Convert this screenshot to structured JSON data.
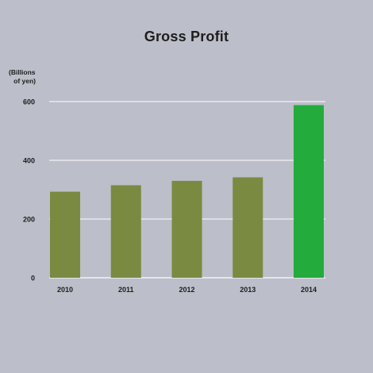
{
  "chart_data": {
    "type": "bar",
    "title": "Gross Profit",
    "unit_label_line1": "(Billions",
    "unit_label_line2": "of yen)",
    "categories": [
      "2010",
      "2011",
      "2012",
      "2013",
      "2014"
    ],
    "values": [
      293,
      315,
      330,
      342,
      588
    ],
    "bar_colors": [
      "#7a8a40",
      "#7a8a40",
      "#7a8a40",
      "#7a8a40",
      "#23ab3b"
    ],
    "ylim": [
      0,
      600
    ],
    "yticks": [
      0,
      200,
      400,
      600
    ],
    "grid": true,
    "grid_color": "#ffffff",
    "background_color": "#bcbec9"
  }
}
